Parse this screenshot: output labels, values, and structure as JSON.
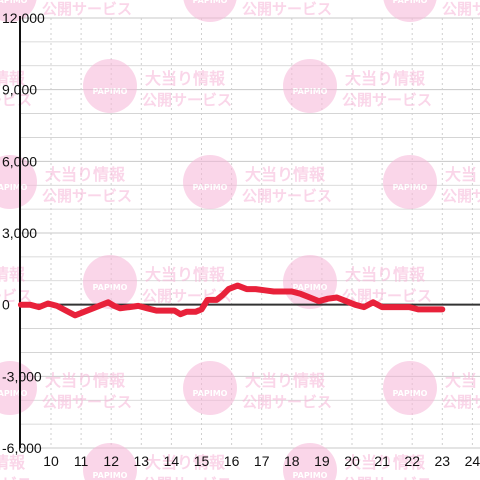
{
  "colors": {
    "series": "#e8213a",
    "watermark": "#f7b6d8",
    "grid_major": "#c8c8c8",
    "grid_minor": "#cfcfcf",
    "axis": "#111111"
  },
  "watermark": {
    "logo_text": "PAPIMO",
    "line1": "大当り情報",
    "line2": "公開サービス"
  },
  "chart_data": {
    "type": "line",
    "title": "",
    "xlabel": "",
    "ylabel": "",
    "xlim": [
      8.5,
      24.5
    ],
    "ylim": [
      -6000,
      12000
    ],
    "x_ticks": [
      10,
      11,
      12,
      13,
      14,
      15,
      16,
      17,
      18,
      19,
      20,
      21,
      22,
      23,
      24
    ],
    "y_ticks": [
      {
        "value": 12000,
        "label": "12,000"
      },
      {
        "value": 9000,
        "label": "9,000"
      },
      {
        "value": 6000,
        "label": "6,000"
      },
      {
        "value": 3000,
        "label": "3,000"
      },
      {
        "value": 0,
        "label": "0"
      },
      {
        "value": -3000,
        "label": "-3,000"
      },
      {
        "value": -6000,
        "label": "-6,000"
      }
    ],
    "grid": true,
    "legend": "none",
    "series": [
      {
        "x": [
          9.0,
          9.3,
          9.6,
          9.9,
          10.2,
          10.5,
          10.8,
          11.1,
          11.4,
          11.7,
          11.9,
          12.1,
          12.3,
          12.6,
          12.9,
          13.2,
          13.5,
          13.8,
          14.1,
          14.3,
          14.5,
          14.8,
          15.0,
          15.2,
          15.5,
          15.7,
          15.9,
          16.2,
          16.5,
          16.8,
          17.1,
          17.4,
          17.7,
          18.0,
          18.3,
          18.6,
          18.9,
          19.2,
          19.5,
          19.8,
          20.1,
          20.4,
          20.7,
          21.0,
          21.3,
          21.6,
          21.9,
          22.2,
          22.5,
          22.8,
          23.0
        ],
        "y": [
          0,
          0,
          -100,
          50,
          -50,
          -250,
          -450,
          -300,
          -150,
          0,
          100,
          -50,
          -150,
          -100,
          -50,
          -150,
          -250,
          -250,
          -250,
          -400,
          -300,
          -300,
          -200,
          200,
          200,
          400,
          650,
          800,
          650,
          650,
          600,
          550,
          550,
          550,
          450,
          300,
          150,
          250,
          300,
          150,
          0,
          -100,
          100,
          -100,
          -100,
          -100,
          -100,
          -200,
          -200,
          -200,
          -200
        ]
      }
    ]
  }
}
